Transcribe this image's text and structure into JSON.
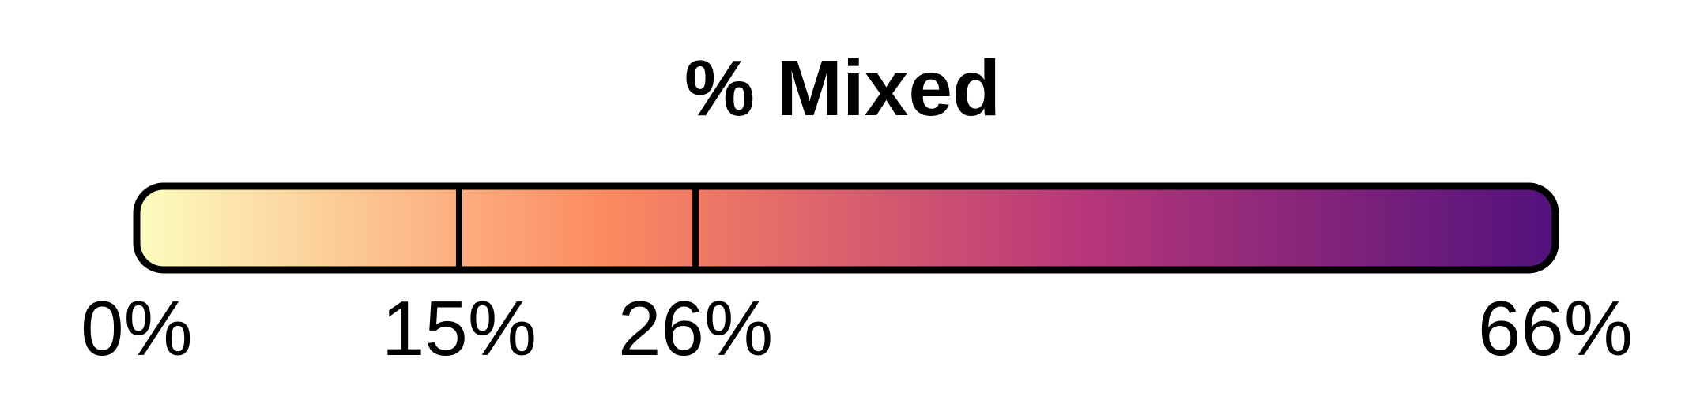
{
  "chart_data": {
    "type": "bar",
    "title": "% Mixed",
    "xlabel": "",
    "ylabel": "",
    "xlim": [
      0,
      66
    ],
    "markers": [
      15,
      26
    ],
    "tick_values": [
      0,
      15,
      26,
      66
    ],
    "tick_labels": [
      "0%",
      "15%",
      "26%",
      "66%"
    ],
    "colormap": [
      "#fcfdbf",
      "#fc8961",
      "#b73779",
      "#51127c"
    ],
    "border_color": "#000000",
    "grid": false,
    "legend": "none"
  }
}
